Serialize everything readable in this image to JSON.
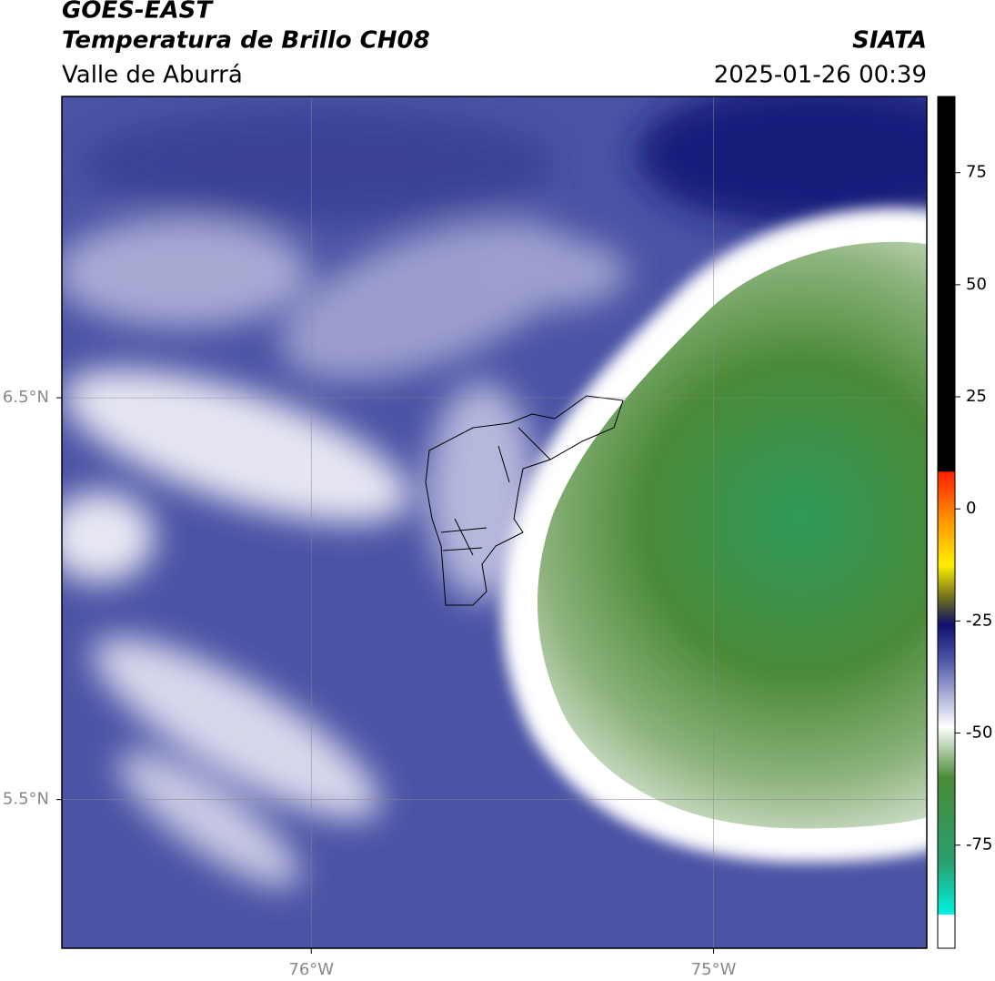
{
  "header": {
    "title": "GOES-EAST",
    "subtitle": "Temperatura de Brillo CH08",
    "region": "Valle de Aburrá",
    "source": "SIATA",
    "datetime": "2025-01-26 00:39"
  },
  "map": {
    "xlim": [
      -76.62,
      -74.47
    ],
    "ylim": [
      5.13,
      7.25
    ],
    "xticks": [
      {
        "value": -76,
        "label": "76°W"
      },
      {
        "value": -75,
        "label": "75°W"
      }
    ],
    "yticks": [
      {
        "value": 6.5,
        "label": "6.5°N"
      },
      {
        "value": 5.5,
        "label": "5.5°N"
      }
    ],
    "grid": true
  },
  "colorbar": {
    "lim": [
      -98,
      92
    ],
    "ticks": [
      75,
      50,
      25,
      0,
      -25,
      -50,
      -75
    ]
  }
}
